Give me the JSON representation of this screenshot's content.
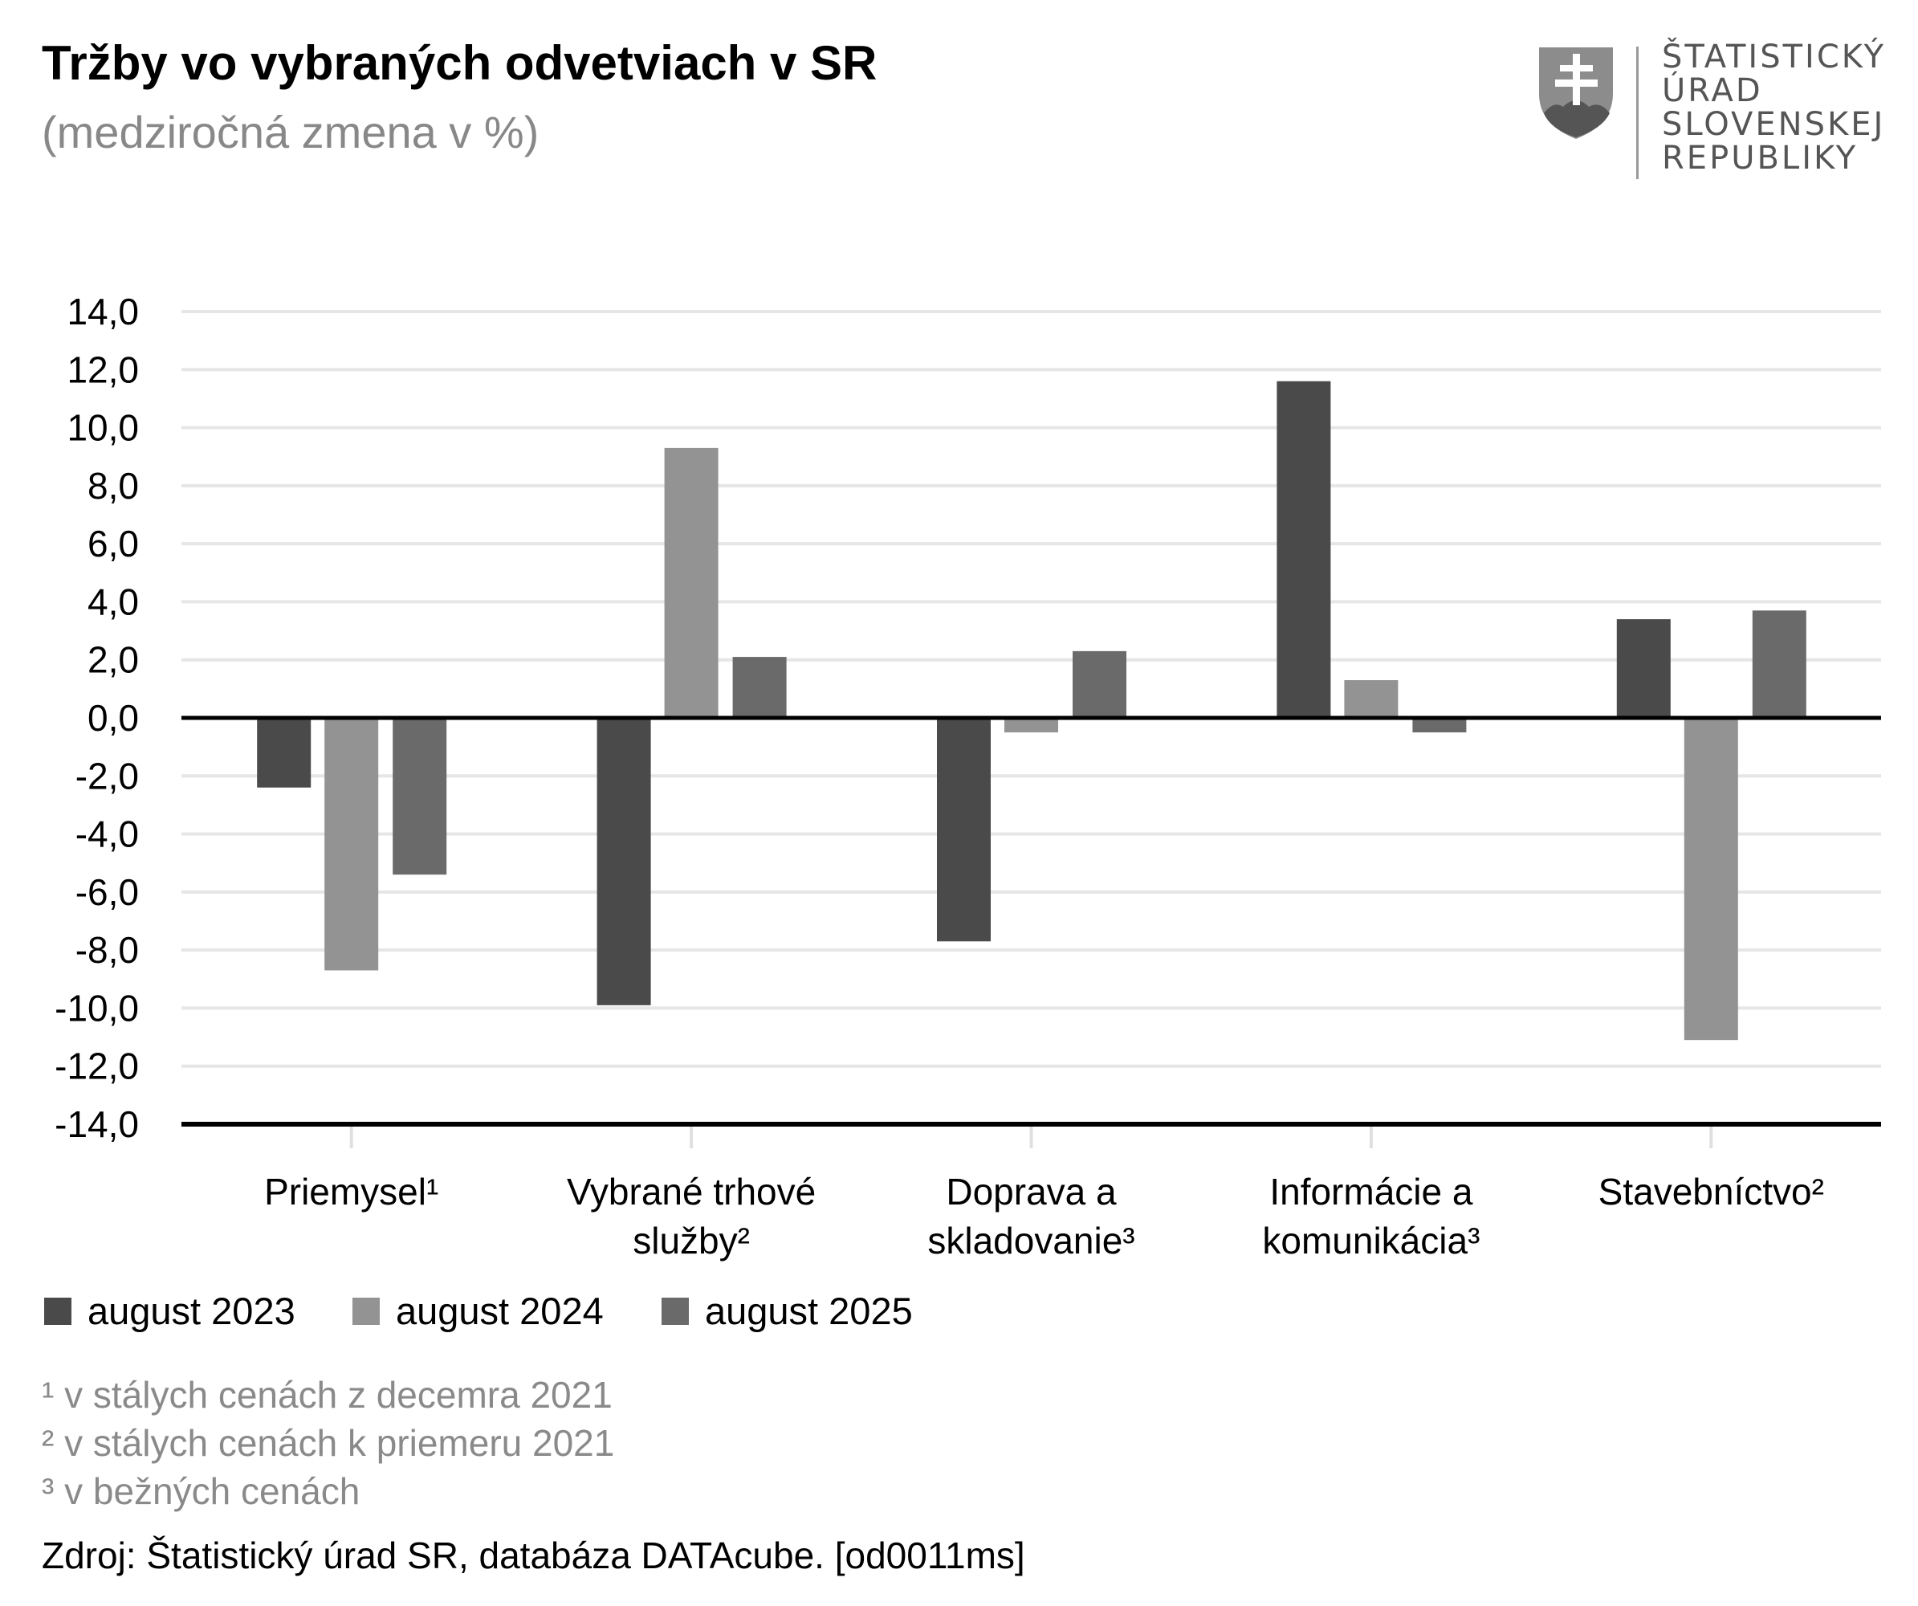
{
  "title": "Tržby vo vybraných odvetviach v SR",
  "subtitle": "(medziročná zmena v %)",
  "logo": {
    "lines": [
      "ŠTATISTICKÝ",
      "ÚRAD",
      "SLOVENSKEJ",
      "REPUBLIKY"
    ],
    "icon": "slovak-coat-of-arms-icon"
  },
  "chart_data": {
    "type": "bar",
    "title": "Tržby vo vybraných odvetviach v SR",
    "subtitle": "(medziročná zmena v %)",
    "categories": [
      [
        "Priemysel¹"
      ],
      [
        "Vybrané trhové",
        "služby²"
      ],
      [
        "Doprava a",
        "skladovanie³"
      ],
      [
        "Informácie a",
        "komunikácia³"
      ],
      [
        "Stavebníctvo²"
      ]
    ],
    "series": [
      {
        "name": "august 2023",
        "color": "#4a4a4a",
        "values": [
          -2.4,
          -9.9,
          -7.7,
          11.6,
          3.4
        ]
      },
      {
        "name": "august 2024",
        "color": "#939393",
        "values": [
          -8.7,
          9.3,
          -0.5,
          1.3,
          -11.1
        ]
      },
      {
        "name": "august 2025",
        "color": "#6a6a6a",
        "values": [
          -5.4,
          2.1,
          2.3,
          -0.5,
          3.7
        ]
      }
    ],
    "ylim": [
      -14,
      14
    ],
    "yticks": [
      "14,0",
      "12,0",
      "10,0",
      "8,0",
      "6,0",
      "4,0",
      "2,0",
      "0,0",
      "-2,0",
      "-4,0",
      "-6,0",
      "-8,0",
      "-10,0",
      "-12,0",
      "-14,0"
    ],
    "ytick_values": [
      14,
      12,
      10,
      8,
      6,
      4,
      2,
      0,
      -2,
      -4,
      -6,
      -8,
      -10,
      -12,
      -14
    ],
    "grid": true,
    "legend_position": "bottom-left",
    "xlabel": "",
    "ylabel": ""
  },
  "footnotes": [
    "¹ v stálych cenách z decemra 2021",
    "² v stálych cenách k priemeru 2021",
    "³ v bežných cenách"
  ],
  "source": "Zdroj: Štatistický úrad SR, databáza DATAcube. [od0011ms]"
}
